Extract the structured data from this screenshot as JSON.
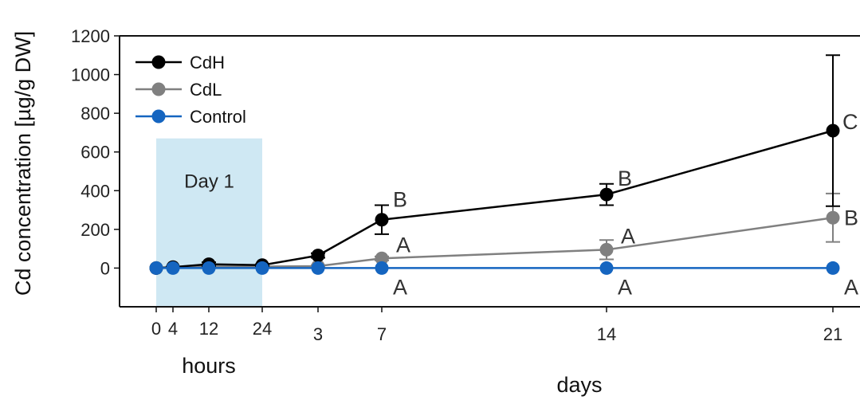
{
  "chart_data": {
    "type": "line",
    "ylabel": "Cd concentration [µg/g DW]",
    "ylim": [
      -200,
      1200
    ],
    "y_ticks": [
      0,
      200,
      400,
      600,
      800,
      1000,
      1200
    ],
    "x_ticks_hours": [
      "0",
      "4",
      "12",
      "24"
    ],
    "x_ticks_days": [
      "3",
      "7",
      "14",
      "21"
    ],
    "x_label_hours": "hours",
    "x_label_days": "days",
    "region": {
      "label": "Day 1",
      "x_start": "0",
      "x_end": "24",
      "y_top": 670
    },
    "x": [
      "0",
      "4",
      "12",
      "24",
      "3",
      "7",
      "14",
      "21"
    ],
    "legend_position": "top-left",
    "series": [
      {
        "name": "CdH",
        "color": "#000000",
        "values": [
          0,
          5,
          20,
          15,
          65,
          250,
          380,
          710
        ],
        "errors": [
          0,
          3,
          10,
          5,
          12,
          75,
          55,
          390
        ],
        "sig": [
          "",
          "",
          "",
          "",
          "",
          "B",
          "B",
          "C"
        ]
      },
      {
        "name": "CdL",
        "color": "#808080",
        "values": [
          0,
          3,
          8,
          8,
          10,
          50,
          95,
          260
        ],
        "errors": [
          0,
          2,
          4,
          4,
          5,
          10,
          50,
          125
        ],
        "sig": [
          "",
          "",
          "",
          "",
          "",
          "A",
          "A",
          "B"
        ]
      },
      {
        "name": "Control",
        "color": "#1565c0",
        "values": [
          0,
          0,
          0,
          0,
          0,
          0,
          0,
          0
        ],
        "errors": [
          0,
          0,
          0,
          0,
          0,
          0,
          0,
          0
        ],
        "sig": [
          "",
          "",
          "",
          "",
          "",
          "A",
          "A",
          "A"
        ]
      }
    ]
  }
}
